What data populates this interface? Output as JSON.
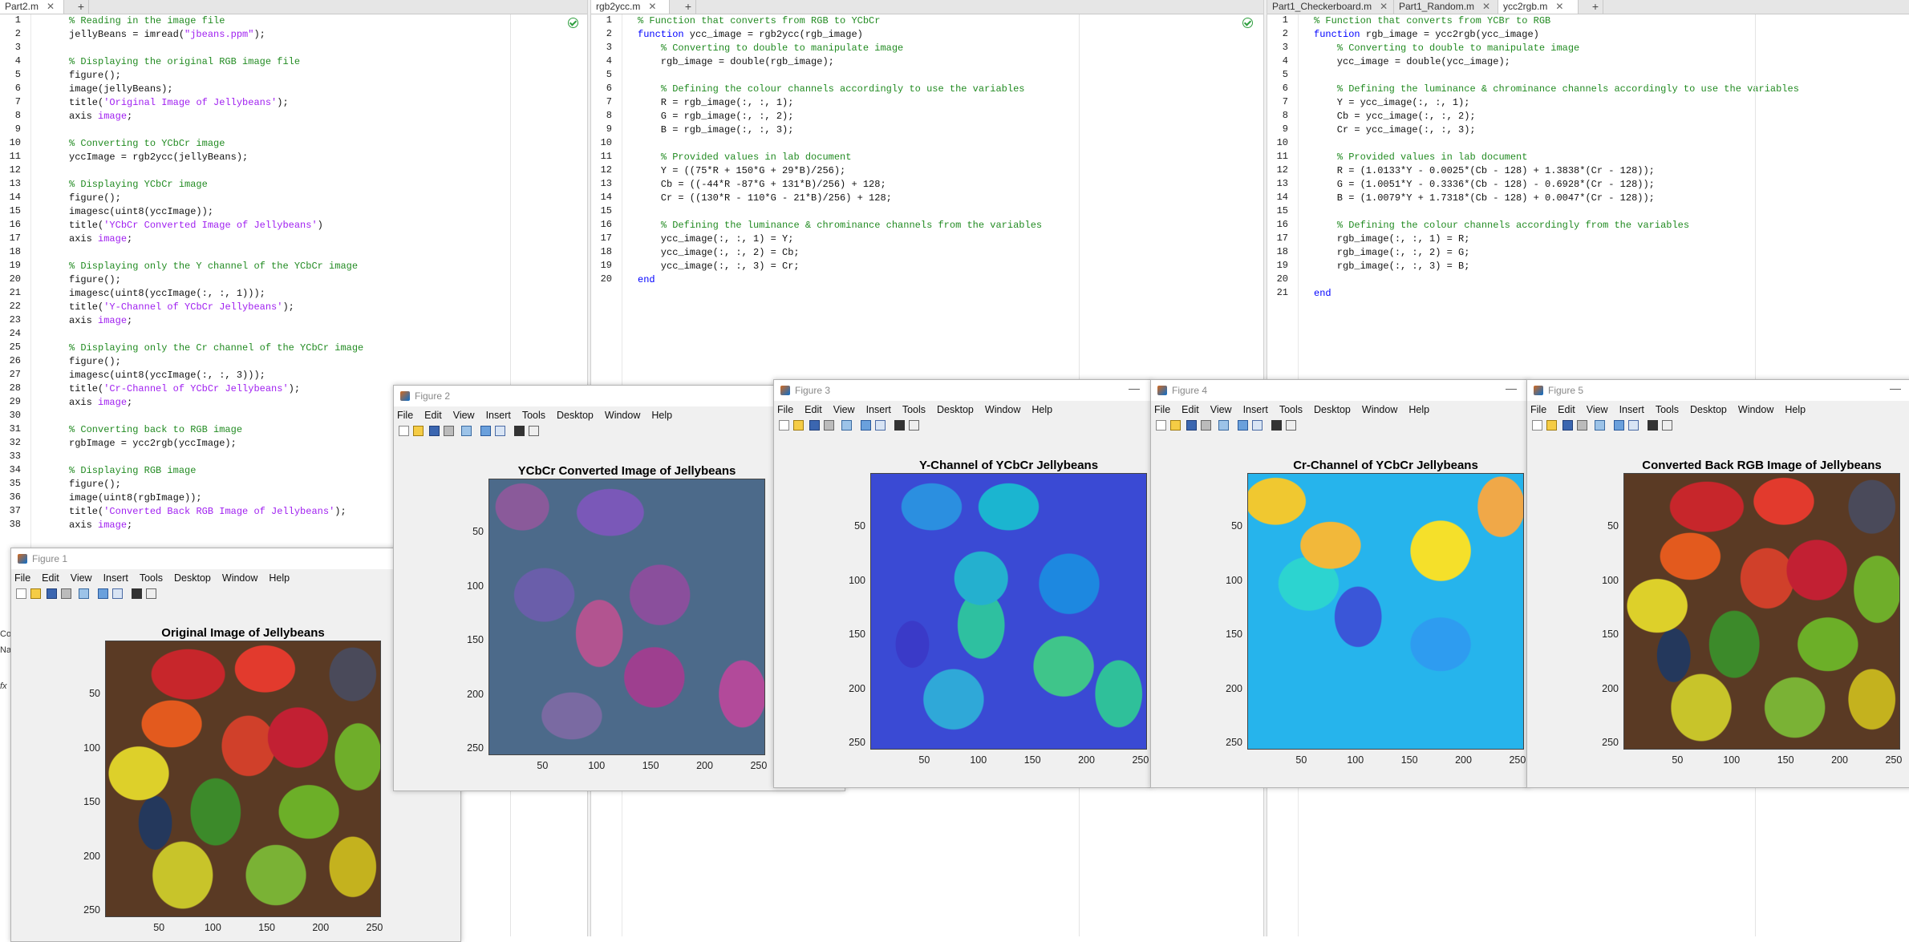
{
  "editor1": {
    "tabs": [
      "Part2.m"
    ],
    "lines": [
      "% Reading in the image file",
      "jellyBeans = imread(\"jbeans.ppm\");",
      "",
      "% Displaying the original RGB image file",
      "figure();",
      "image(jellyBeans);",
      "title('Original Image of Jellybeans');",
      "axis image;",
      "",
      "% Converting to YCbCr image",
      "yccImage = rgb2ycc(jellyBeans);",
      "",
      "% Displaying YCbCr image",
      "figure();",
      "imagesc(uint8(yccImage));",
      "title('YCbCr Converted Image of Jellybeans')",
      "axis image;",
      "",
      "% Displaying only the Y channel of the YCbCr image",
      "figure();",
      "imagesc(uint8(yccImage(:, :, 1)));",
      "title('Y-Channel of YCbCr Jellybeans');",
      "axis image;",
      "",
      "% Displaying only the Cr channel of the YCbCr image",
      "figure();",
      "imagesc(uint8(yccImage(:, :, 3)));",
      "title('Cr-Channel of YCbCr Jellybeans');",
      "axis image;",
      "",
      "% Converting back to RGB image",
      "rgbImage = ycc2rgb(yccImage);",
      "",
      "% Displaying RGB image",
      "figure();",
      "image(uint8(rgbImage));",
      "title('Converted Back RGB Image of Jellybeans');",
      "axis image;"
    ]
  },
  "editor2": {
    "tabs": [
      "rgb2ycc.m"
    ],
    "lines": [
      "% Function that converts from RGB to YCbCr",
      "function ycc_image = rgb2ycc(rgb_image)",
      "    % Converting to double to manipulate image",
      "    rgb_image = double(rgb_image);",
      "",
      "    % Defining the colour channels accordingly to use the variables",
      "    R = rgb_image(:, :, 1);",
      "    G = rgb_image(:, :, 2);",
      "    B = rgb_image(:, :, 3);",
      "",
      "    % Provided values in lab document",
      "    Y = ((75*R + 150*G + 29*B)/256);",
      "    Cb = ((-44*R -87*G + 131*B)/256) + 128;",
      "    Cr = ((130*R - 110*G - 21*B)/256) + 128;",
      "",
      "    % Defining the luminance & chrominance channels from the variables",
      "    ycc_image(:, :, 1) = Y;",
      "    ycc_image(:, :, 2) = Cb;",
      "    ycc_image(:, :, 3) = Cr;",
      "end"
    ]
  },
  "editor3": {
    "tabs": [
      "Part1_Checkerboard.m",
      "Part1_Random.m",
      "ycc2rgb.m"
    ],
    "lines": [
      "% Function that converts from YCBr to RGB",
      "function rgb_image = ycc2rgb(ycc_image)",
      "    % Converting to double to manipulate image",
      "    ycc_image = double(ycc_image);",
      "",
      "    % Defining the luminance & chrominance channels accordingly to use the variables",
      "    Y = ycc_image(:, :, 1);",
      "    Cb = ycc_image(:, :, 2);",
      "    Cr = ycc_image(:, :, 3);",
      "",
      "    % Provided values in lab document",
      "    R = (1.0133*Y - 0.0025*(Cb - 128) + 1.3838*(Cr - 128));",
      "    G = (1.0051*Y - 0.3336*(Cb - 128) - 0.6928*(Cr - 128));",
      "    B = (1.0079*Y + 1.7318*(Cb - 128) + 0.0047*(Cr - 128));",
      "",
      "    % Defining the colour channels accordingly from the variables",
      "    rgb_image(:, :, 1) = R;",
      "    rgb_image(:, :, 2) = G;",
      "    rgb_image(:, :, 3) = B;",
      "",
      "end"
    ]
  },
  "figure_menu": [
    "File",
    "Edit",
    "View",
    "Insert",
    "Tools",
    "Desktop",
    "Window",
    "Help"
  ],
  "figures": [
    {
      "name": "Figure 1",
      "title": "Original Image of Jellybeans"
    },
    {
      "name": "Figure 2",
      "title": "YCbCr Converted Image of Jellybeans"
    },
    {
      "name": "Figure 3",
      "title": "Y-Channel of YCbCr Jellybeans"
    },
    {
      "name": "Figure 4",
      "title": "Cr-Channel of YCbCr Jellybeans"
    },
    {
      "name": "Figure 5",
      "title": "Converted Back RGB Image of Jellybeans"
    }
  ],
  "axis_ticks": {
    "x": [
      "50",
      "100",
      "150",
      "200",
      "250"
    ],
    "y": [
      "50",
      "100",
      "150",
      "200",
      "250"
    ]
  },
  "cmd_stub": {
    "c1": "Co",
    "c2": "Na",
    "fx": "fx"
  },
  "colors": {
    "comment": "#228b22",
    "string": "#a020f0",
    "keyword": "#0000ff",
    "figure_bg": "#f0f0f0"
  }
}
